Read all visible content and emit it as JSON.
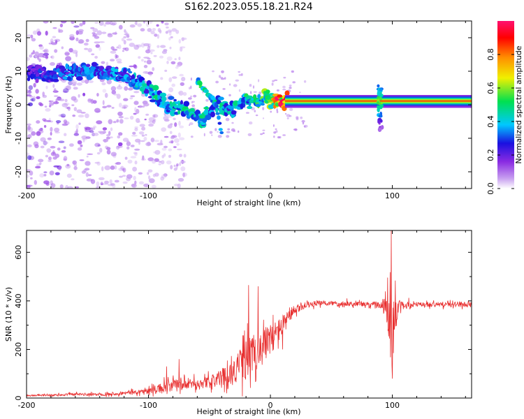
{
  "figure_title": "S162.2023.055.18.21.R24",
  "chart_data": [
    {
      "type": "heatmap",
      "title": "",
      "xlabel": "Height of straight line (km)",
      "ylabel": "Frequency (Hz)",
      "xlim": [
        -200,
        165
      ],
      "ylim": [
        -25,
        25
      ],
      "x_ticks": [
        -200,
        -100,
        0,
        100
      ],
      "x_tick_labels": [
        "-200",
        "-100",
        "0",
        "100"
      ],
      "y_ticks": [
        -20,
        -10,
        0,
        10,
        20
      ],
      "y_tick_labels": [
        "-20",
        "-10",
        "0",
        "10",
        "20"
      ],
      "colorbar": {
        "label": "Normalized spectral amplitude",
        "range": [
          0,
          1
        ],
        "ticks": [
          0.0,
          0.2,
          0.4,
          0.6,
          0.8
        ],
        "tick_labels": [
          "0.0",
          "0.2",
          "0.4",
          "0.6",
          "0.8"
        ],
        "colormap": [
          "#ffffff",
          "#c8a0f0",
          "#8a2be2",
          "#1a10e0",
          "#00c8ff",
          "#00e050",
          "#f0f000",
          "#ff9000",
          "#ff0000",
          "#ff1070"
        ]
      },
      "ridge": {
        "x": [
          -195,
          -180,
          -160,
          -140,
          -120,
          -105,
          -95,
          -85,
          -75,
          -65,
          -55,
          -45,
          -35,
          -25,
          -15,
          -5,
          0,
          5,
          10,
          20,
          40,
          60,
          80,
          88,
          92,
          100,
          120,
          140,
          165
        ],
        "frequency": [
          9,
          9,
          10,
          10,
          9,
          6,
          3,
          0,
          -1,
          -3,
          -5,
          1,
          -2,
          0,
          1,
          2,
          1,
          1,
          1,
          1,
          1,
          1,
          1,
          1,
          1,
          1,
          1,
          1,
          1
        ],
        "amplitude": [
          0.25,
          0.3,
          0.35,
          0.35,
          0.35,
          0.4,
          0.45,
          0.45,
          0.45,
          0.45,
          0.45,
          0.45,
          0.4,
          0.45,
          0.5,
          0.55,
          0.6,
          0.85,
          1.0,
          1.0,
          1.0,
          1.0,
          1.0,
          1.0,
          1.0,
          1.0,
          1.0,
          1.0,
          1.0
        ]
      },
      "secondary_streak": {
        "x": [
          -60,
          -55,
          -50,
          -45,
          -40
        ],
        "frequency": [
          7,
          5,
          3,
          0,
          -8
        ],
        "amplitude": [
          0.45,
          0.5,
          0.45,
          0.4,
          0.35
        ]
      },
      "spike": {
        "x": 90,
        "frequency_range": [
          -8,
          6
        ]
      }
    },
    {
      "type": "line",
      "title": "",
      "xlabel": "Height of straight line (km)",
      "ylabel": "SNR (10 * v/v)",
      "xlim": [
        -200,
        165
      ],
      "ylim": [
        0,
        690
      ],
      "x_ticks": [
        -200,
        -100,
        0,
        100
      ],
      "x_tick_labels": [
        "-200",
        "-100",
        "0",
        "100"
      ],
      "y_ticks": [
        0,
        200,
        400,
        600
      ],
      "y_tick_labels": [
        "0",
        "200",
        "400",
        "600"
      ],
      "color": "#e83030",
      "envelope": {
        "x": [
          -200,
          -180,
          -160,
          -140,
          -120,
          -100,
          -90,
          -80,
          -70,
          -60,
          -50,
          -40,
          -30,
          -20,
          -10,
          0,
          10,
          20,
          30,
          40,
          60,
          80,
          90,
          95,
          98,
          100,
          102,
          105,
          120,
          140,
          165
        ],
        "mean": [
          10,
          12,
          15,
          15,
          20,
          30,
          40,
          50,
          55,
          60,
          65,
          85,
          110,
          160,
          200,
          240,
          300,
          360,
          385,
          390,
          390,
          385,
          385,
          380,
          300,
          250,
          330,
          380,
          385,
          385,
          385
        ],
        "noise": [
          5,
          5,
          8,
          8,
          10,
          15,
          30,
          40,
          30,
          30,
          35,
          50,
          70,
          120,
          110,
          90,
          60,
          25,
          18,
          15,
          15,
          15,
          20,
          60,
          240,
          250,
          120,
          30,
          15,
          15,
          15
        ]
      },
      "peaks": [
        {
          "x": -85,
          "y": 130
        },
        {
          "x": -75,
          "y": 160
        },
        {
          "x": -18,
          "y": 465
        },
        {
          "x": -10,
          "y": 460
        },
        {
          "x": 0,
          "y": 300
        },
        {
          "x": 10,
          "y": 200
        },
        {
          "x": 99,
          "y": 690
        },
        {
          "x": 100,
          "y": 80
        }
      ]
    }
  ]
}
